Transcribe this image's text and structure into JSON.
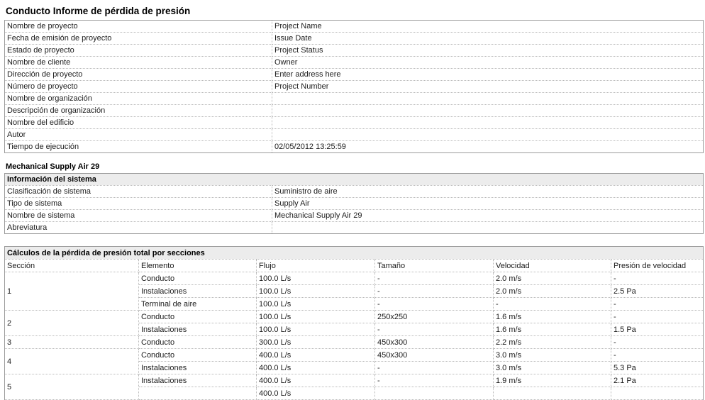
{
  "report": {
    "title": "Conducto Informe de pérdida de presión"
  },
  "project_info": {
    "rows": [
      {
        "label": "Nombre de proyecto",
        "value": "Project Name"
      },
      {
        "label": "Fecha de emisión de proyecto",
        "value": "Issue Date"
      },
      {
        "label": "Estado de proyecto",
        "value": "Project Status"
      },
      {
        "label": "Nombre de cliente",
        "value": "Owner"
      },
      {
        "label": "Dirección de proyecto",
        "value": "Enter address here"
      },
      {
        "label": "Número de proyecto",
        "value": "Project Number"
      },
      {
        "label": "Nombre de organización",
        "value": ""
      },
      {
        "label": "Descripción de organización",
        "value": ""
      },
      {
        "label": "Nombre del edificio",
        "value": ""
      },
      {
        "label": "Autor",
        "value": ""
      },
      {
        "label": "Tiempo de ejecución",
        "value": "02/05/2012 13:25:59"
      }
    ]
  },
  "system": {
    "heading": "Mechanical Supply Air 29",
    "table_title": "Información del sistema",
    "rows": [
      {
        "label": "Clasificación de sistema",
        "value": "Suministro de aire"
      },
      {
        "label": "Tipo de sistema",
        "value": "Supply Air"
      },
      {
        "label": "Nombre de sistema",
        "value": "Mechanical Supply Air 29"
      },
      {
        "label": "Abreviatura",
        "value": ""
      }
    ]
  },
  "calculations": {
    "table_title": "Cálculos de la pérdida de presión total por secciones",
    "columns": [
      "Sección",
      "Elemento",
      "Flujo",
      "Tamaño",
      "Velocidad",
      "Presión de velocidad"
    ],
    "sections": [
      {
        "section": "1",
        "rows": [
          [
            "Conducto",
            "100.0 L/s",
            "-",
            "2.0 m/s",
            "-"
          ],
          [
            "Instalaciones",
            "100.0 L/s",
            "-",
            "2.0 m/s",
            "2.5 Pa"
          ],
          [
            "Terminal de aire",
            "100.0 L/s",
            "-",
            "-",
            "-"
          ]
        ]
      },
      {
        "section": "2",
        "rows": [
          [
            "Conducto",
            "100.0 L/s",
            "250x250",
            "1.6 m/s",
            "-"
          ],
          [
            "Instalaciones",
            "100.0 L/s",
            "-",
            "1.6 m/s",
            "1.5 Pa"
          ]
        ]
      },
      {
        "section": "3",
        "rows": [
          [
            "Conducto",
            "300.0 L/s",
            "450x300",
            "2.2 m/s",
            "-"
          ]
        ]
      },
      {
        "section": "4",
        "rows": [
          [
            "Conducto",
            "400.0 L/s",
            "450x300",
            "3.0 m/s",
            "-"
          ],
          [
            "Instalaciones",
            "400.0 L/s",
            "-",
            "3.0 m/s",
            "5.3 Pa"
          ]
        ]
      },
      {
        "section": "5",
        "rows": [
          [
            "Instalaciones",
            "400.0 L/s",
            "-",
            "1.9 m/s",
            "2.1 Pa"
          ]
        ],
        "partial_row": [
          "",
          "400.0 L/s",
          "",
          "",
          ""
        ]
      }
    ]
  },
  "colors": {
    "header_row_background": "#ececec",
    "outer_border": "#9b9b9b",
    "inner_dotted_border": "#b9b9b9",
    "text": "#1c1c1c",
    "heading_text": "#000000",
    "page_background": "#ffffff"
  }
}
